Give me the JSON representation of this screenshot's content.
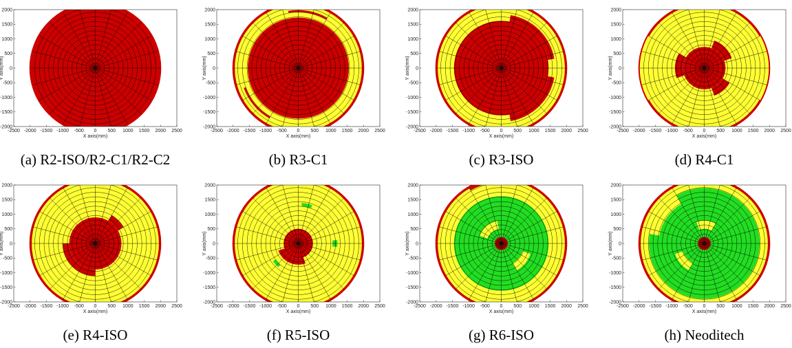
{
  "figure": {
    "colors": {
      "red": "#cc0000",
      "yellow": "#ffff33",
      "green": "#22dd22",
      "grid": "#000000",
      "background": "#ffffff"
    }
  },
  "chart_data": [
    {
      "type": "polar-grid",
      "caption": "(a) R2-ISO/R2-C1/R2-C2",
      "xlabel": "X axis(mm)",
      "ylabel": "Y axis(mm)",
      "xlim": [
        -2500,
        2500
      ],
      "ylim": [
        -2000,
        2000
      ],
      "xticks": [
        -2500,
        -2000,
        -1500,
        -1000,
        -500,
        0,
        500,
        1000,
        1500,
        2000,
        2500
      ],
      "yticks": [
        -2000,
        -1500,
        -1000,
        -500,
        0,
        500,
        1000,
        1500,
        2000
      ],
      "outer_radius_mm": 2000,
      "sectors": 24,
      "rings": 14,
      "base_color": "red",
      "regions": []
    },
    {
      "type": "polar-grid",
      "caption": "(b) R3-C1",
      "xlabel": "X axis(mm)",
      "ylabel": "Y axis(mm)",
      "xlim": [
        -2500,
        2500
      ],
      "ylim": [
        -2000,
        2000
      ],
      "xticks": [
        -2500,
        -2000,
        -1500,
        -1000,
        -500,
        0,
        500,
        1000,
        1500,
        2000,
        2500
      ],
      "yticks": [
        -2000,
        -1500,
        -1000,
        -500,
        0,
        500,
        1000,
        1500,
        2000
      ],
      "outer_radius_mm": 2000,
      "sectors": 24,
      "rings": 14,
      "base_color": "red",
      "regions": [
        {
          "color": "yellow",
          "r": [
            1550,
            1950
          ],
          "a": [
            0,
            360
          ]
        },
        {
          "color": "red",
          "r": [
            1720,
            1780
          ],
          "a": [
            60,
            100
          ]
        },
        {
          "color": "red",
          "r": [
            1720,
            1780
          ],
          "a": [
            200,
            240
          ]
        },
        {
          "color": "red",
          "r": [
            1950,
            2000
          ],
          "a": [
            0,
            360
          ]
        }
      ]
    },
    {
      "type": "polar-grid",
      "caption": "(c) R3-ISO",
      "xlabel": "X axis(mm)",
      "ylabel": "Y axis(mm)",
      "xlim": [
        -2500,
        2500
      ],
      "ylim": [
        -2000,
        2000
      ],
      "xticks": [
        -2500,
        -2000,
        -1500,
        -1000,
        -500,
        0,
        500,
        1000,
        1500,
        2000,
        2500
      ],
      "yticks": [
        -2000,
        -1500,
        -1000,
        -500,
        0,
        500,
        1000,
        1500,
        2000
      ],
      "outer_radius_mm": 2000,
      "sectors": 24,
      "rings": 14,
      "base_color": "yellow",
      "regions": [
        {
          "color": "red",
          "r": [
            0,
            1450
          ],
          "a": [
            0,
            360
          ]
        },
        {
          "color": "red",
          "r": [
            1450,
            1650
          ],
          "a": [
            10,
            80
          ]
        },
        {
          "color": "red",
          "r": [
            1450,
            1650
          ],
          "a": [
            280,
            350
          ]
        },
        {
          "color": "red",
          "r": [
            1950,
            2000
          ],
          "a": [
            0,
            360
          ]
        }
      ]
    },
    {
      "type": "polar-grid",
      "caption": "(d) R4-C1",
      "xlabel": "X axis(mm)",
      "ylabel": "Y axis(mm)",
      "xlim": [
        -2500,
        2500
      ],
      "ylim": [
        -2000,
        2000
      ],
      "xticks": [
        -2500,
        -2000,
        -1500,
        -1000,
        -500,
        0,
        500,
        1000,
        1500,
        2000,
        2500
      ],
      "yticks": [
        -2000,
        -1500,
        -1000,
        -500,
        0,
        500,
        1000,
        1500,
        2000
      ],
      "outer_radius_mm": 2000,
      "sectors": 24,
      "rings": 14,
      "base_color": "yellow",
      "regions": [
        {
          "color": "red",
          "r": [
            0,
            650
          ],
          "a": [
            0,
            360
          ]
        },
        {
          "color": "red",
          "r": [
            650,
            900
          ],
          "a": [
            20,
            70
          ]
        },
        {
          "color": "red",
          "r": [
            650,
            900
          ],
          "a": [
            150,
            200
          ]
        },
        {
          "color": "red",
          "r": [
            650,
            900
          ],
          "a": [
            290,
            330
          ]
        },
        {
          "color": "red",
          "r": [
            1950,
            2000
          ],
          "a": [
            30,
            150
          ]
        },
        {
          "color": "red",
          "r": [
            1950,
            2000
          ],
          "a": [
            210,
            330
          ]
        }
      ]
    },
    {
      "type": "polar-grid",
      "caption": "(e) R4-ISO",
      "xlabel": "X axis(mm)",
      "ylabel": "Y axis(mm)",
      "xlim": [
        -2500,
        2500
      ],
      "ylim": [
        -2000,
        2000
      ],
      "xticks": [
        -2500,
        -2000,
        -1500,
        -1000,
        -500,
        0,
        500,
        1000,
        1500,
        2000,
        2500
      ],
      "yticks": [
        -2000,
        -1500,
        -1000,
        -500,
        0,
        500,
        1000,
        1500,
        2000
      ],
      "outer_radius_mm": 2000,
      "sectors": 24,
      "rings": 14,
      "base_color": "yellow",
      "regions": [
        {
          "color": "red",
          "r": [
            0,
            800
          ],
          "a": [
            0,
            360
          ]
        },
        {
          "color": "red",
          "r": [
            800,
            1000
          ],
          "a": [
            180,
            270
          ]
        },
        {
          "color": "red",
          "r": [
            800,
            1000
          ],
          "a": [
            30,
            60
          ]
        },
        {
          "color": "red",
          "r": [
            1950,
            2000
          ],
          "a": [
            0,
            360
          ]
        }
      ]
    },
    {
      "type": "polar-grid",
      "caption": "(f) R5-ISO",
      "xlabel": "X axis(mm)",
      "ylabel": "Y axis(mm)",
      "xlim": [
        -2500,
        2500
      ],
      "ylim": [
        -2000,
        2000
      ],
      "xticks": [
        -2500,
        -2000,
        -1500,
        -1000,
        -500,
        0,
        500,
        1000,
        1500,
        2000,
        2500
      ],
      "yticks": [
        -2000,
        -1500,
        -1000,
        -500,
        0,
        500,
        1000,
        1500,
        2000
      ],
      "outer_radius_mm": 2000,
      "sectors": 24,
      "rings": 14,
      "base_color": "yellow",
      "regions": [
        {
          "color": "red",
          "r": [
            0,
            450
          ],
          "a": [
            0,
            360
          ]
        },
        {
          "color": "red",
          "r": [
            450,
            650
          ],
          "a": [
            200,
            290
          ]
        },
        {
          "color": "green",
          "r": [
            1150,
            1250
          ],
          "a": [
            70,
            85
          ]
        },
        {
          "color": "green",
          "r": [
            1050,
            1200
          ],
          "a": [
            355,
            365
          ]
        },
        {
          "color": "green",
          "r": [
            850,
            950
          ],
          "a": [
            215,
            230
          ]
        },
        {
          "color": "red",
          "r": [
            1950,
            2000
          ],
          "a": [
            0,
            360
          ]
        }
      ]
    },
    {
      "type": "polar-grid",
      "caption": "(g) R6-ISO",
      "xlabel": "X axis(mm)",
      "ylabel": "Y axis(mm)",
      "xlim": [
        -2500,
        2500
      ],
      "ylim": [
        -2000,
        2000
      ],
      "xticks": [
        -2500,
        -2000,
        -1500,
        -1000,
        -500,
        0,
        500,
        1000,
        1500,
        2000,
        2500
      ],
      "yticks": [
        -2000,
        -1500,
        -1000,
        -500,
        0,
        500,
        1000,
        1500,
        2000
      ],
      "outer_radius_mm": 2000,
      "sectors": 24,
      "rings": 14,
      "base_color": "yellow",
      "regions": [
        {
          "color": "green",
          "r": [
            200,
            1450
          ],
          "a": [
            0,
            360
          ]
        },
        {
          "color": "yellow",
          "r": [
            450,
            700
          ],
          "a": [
            100,
            160
          ]
        },
        {
          "color": "yellow",
          "r": [
            700,
            950
          ],
          "a": [
            300,
            340
          ]
        },
        {
          "color": "red",
          "r": [
            0,
            200
          ],
          "a": [
            0,
            360
          ]
        },
        {
          "color": "red",
          "r": [
            1950,
            2000
          ],
          "a": [
            0,
            360
          ]
        },
        {
          "color": "red",
          "r": [
            1880,
            1950
          ],
          "a": [
            80,
            120
          ]
        }
      ]
    },
    {
      "type": "polar-grid",
      "caption": "(h) Neoditech",
      "xlabel": "X axis(mm)",
      "ylabel": "Y axis(mm)",
      "xlim": [
        -2500,
        2500
      ],
      "ylim": [
        -2000,
        2000
      ],
      "xticks": [
        -2500,
        -2000,
        -1500,
        -1000,
        -500,
        0,
        500,
        1000,
        1500,
        2000,
        2500
      ],
      "yticks": [
        -2000,
        -1500,
        -1000,
        -500,
        0,
        500,
        1000,
        1500,
        2000
      ],
      "outer_radius_mm": 2000,
      "sectors": 24,
      "rings": 14,
      "base_color": "yellow",
      "regions": [
        {
          "color": "green",
          "r": [
            200,
            1700
          ],
          "a": [
            0,
            360
          ]
        },
        {
          "color": "yellow",
          "r": [
            450,
            700
          ],
          "a": [
            60,
            110
          ]
        },
        {
          "color": "yellow",
          "r": [
            700,
            950
          ],
          "a": [
            200,
            240
          ]
        },
        {
          "color": "yellow",
          "r": [
            1400,
            1700
          ],
          "a": [
            120,
            170
          ]
        },
        {
          "color": "red",
          "r": [
            0,
            200
          ],
          "a": [
            0,
            360
          ]
        },
        {
          "color": "red",
          "r": [
            1950,
            2000
          ],
          "a": [
            0,
            360
          ]
        }
      ]
    }
  ]
}
